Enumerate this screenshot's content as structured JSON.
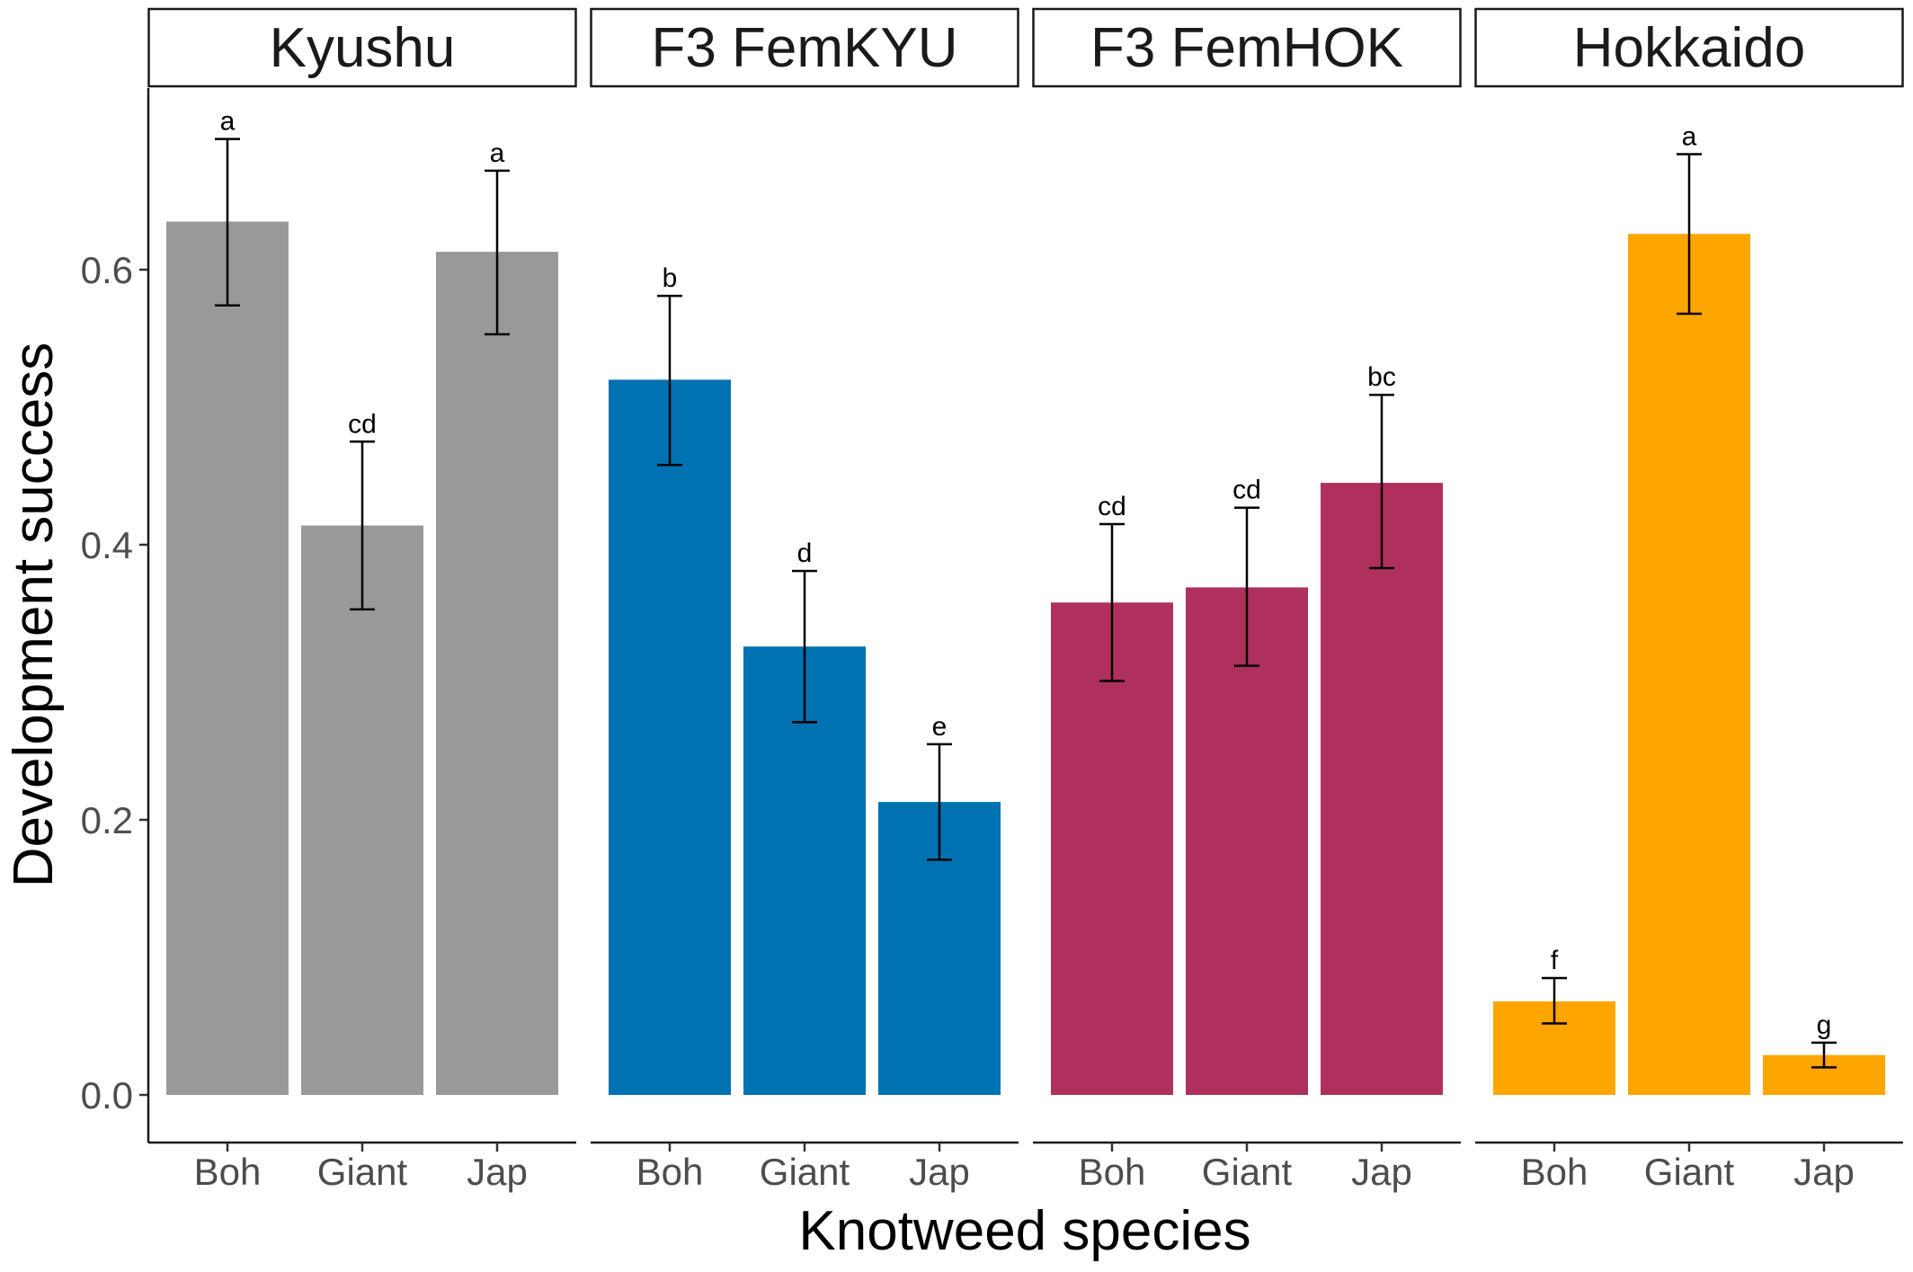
{
  "chart_data": {
    "type": "bar",
    "xlabel": "Knotweed species",
    "ylabel": "Development success",
    "ylim": [
      -0.035,
      0.735
    ],
    "yticks": [
      0.0,
      0.2,
      0.4,
      0.6
    ],
    "ytick_labels": [
      "0.0",
      "0.2",
      "0.4",
      "0.6"
    ],
    "grid": false,
    "legend": "none",
    "categories": [
      "Boh",
      "Giant",
      "Jap"
    ],
    "panels": [
      {
        "name": "Kyushu",
        "color": "#999999",
        "bars": [
          {
            "category": "Boh",
            "value": 0.635,
            "err_low": 0.574,
            "err_high": 0.695,
            "label": "a"
          },
          {
            "category": "Giant",
            "value": 0.414,
            "err_low": 0.353,
            "err_high": 0.475,
            "label": "cd"
          },
          {
            "category": "Jap",
            "value": 0.613,
            "err_low": 0.553,
            "err_high": 0.672,
            "label": "a"
          }
        ]
      },
      {
        "name": "F3 FemKYU",
        "color": "#0072B2",
        "bars": [
          {
            "category": "Boh",
            "value": 0.52,
            "err_low": 0.458,
            "err_high": 0.581,
            "label": "b"
          },
          {
            "category": "Giant",
            "value": 0.326,
            "err_low": 0.271,
            "err_high": 0.381,
            "label": "d"
          },
          {
            "category": "Jap",
            "value": 0.213,
            "err_low": 0.171,
            "err_high": 0.255,
            "label": "e"
          }
        ]
      },
      {
        "name": "F3 FemHOK",
        "color": "#AF305E",
        "bars": [
          {
            "category": "Boh",
            "value": 0.358,
            "err_low": 0.301,
            "err_high": 0.415,
            "label": "cd"
          },
          {
            "category": "Giant",
            "value": 0.369,
            "err_low": 0.312,
            "err_high": 0.427,
            "label": "cd"
          },
          {
            "category": "Jap",
            "value": 0.445,
            "err_low": 0.383,
            "err_high": 0.509,
            "label": "bc"
          }
        ]
      },
      {
        "name": "Hokkaido",
        "color": "#FFA500",
        "bars": [
          {
            "category": "Boh",
            "value": 0.068,
            "err_low": 0.052,
            "err_high": 0.085,
            "label": "f"
          },
          {
            "category": "Giant",
            "value": 0.626,
            "err_low": 0.568,
            "err_high": 0.684,
            "label": "a"
          },
          {
            "category": "Jap",
            "value": 0.029,
            "err_low": 0.02,
            "err_high": 0.038,
            "label": "g"
          }
        ]
      }
    ]
  }
}
